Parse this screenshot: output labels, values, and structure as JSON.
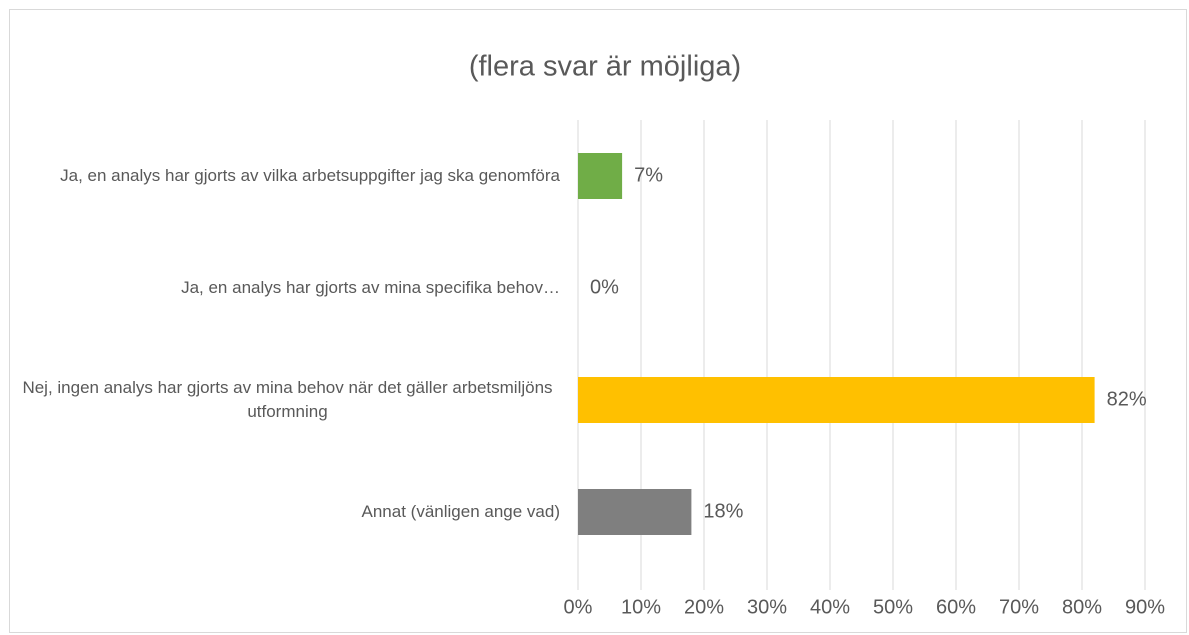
{
  "chart_data": {
    "type": "bar",
    "orientation": "horizontal",
    "title": "(flera svar är möjliga)",
    "categories": [
      "Ja, en analys har gjorts av vilka arbetsuppgifter jag ska genomföra",
      "Ja, en analys har gjorts av mina specifika behov…",
      "Nej, ingen analys har gjorts av mina behov när det gäller arbetsmiljöns utformning",
      "Annat (vänligen ange vad)"
    ],
    "values": [
      7,
      0,
      82,
      18
    ],
    "value_labels": [
      "7%",
      "0%",
      "82%",
      "18%"
    ],
    "colors": [
      "#70ad47",
      null,
      "#ffc000",
      "#7f7f7f"
    ],
    "xlim": [
      0,
      90
    ],
    "xticks": [
      {
        "value": 0,
        "label": "0%"
      },
      {
        "value": 10,
        "label": "10%"
      },
      {
        "value": 20,
        "label": "20%"
      },
      {
        "value": 30,
        "label": "30%"
      },
      {
        "value": 40,
        "label": "40%"
      },
      {
        "value": 50,
        "label": "50%"
      },
      {
        "value": 60,
        "label": "60%"
      },
      {
        "value": 70,
        "label": "70%"
      },
      {
        "value": 80,
        "label": "80%"
      },
      {
        "value": 90,
        "label": "90%"
      }
    ],
    "grid": true
  }
}
